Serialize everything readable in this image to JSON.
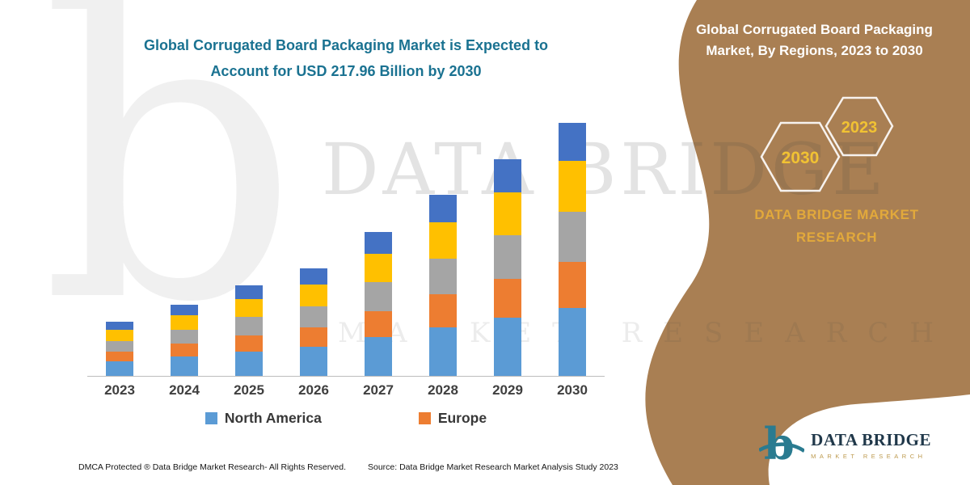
{
  "colors": {
    "teal": "#1A7291",
    "brown": "#A97F53",
    "gold": "#E2A93B",
    "dark": "#3F3F3F",
    "hex_year_gold": "#F1C233"
  },
  "headline": {
    "line1": "Global Corrugated Board Packaging Market is Expected to",
    "line2": "Account for USD 217.96 Billion by 2030"
  },
  "chart_data": {
    "type": "bar",
    "stacked": true,
    "title": "Global Corrugated Board Packaging Market is Expected to Account for USD 217.96 Billion by 2030",
    "xlabel": "",
    "ylabel": "",
    "y_axis_visible": false,
    "grid": false,
    "legend_position": "bottom",
    "ylim": [
      0,
      230
    ],
    "unit_hint": "USD Billion",
    "categories": [
      "2023",
      "2024",
      "2025",
      "2026",
      "2027",
      "2028",
      "2029",
      "2030"
    ],
    "series": [
      {
        "name": "North America",
        "color": "#5B9BD5",
        "values": [
          12.6,
          16.6,
          21.1,
          25.0,
          33.5,
          42.1,
          50.4,
          58.8
        ]
      },
      {
        "name": "Europe",
        "color": "#ED7D31",
        "values": [
          8.4,
          11.0,
          14.0,
          16.7,
          22.3,
          28.1,
          33.6,
          39.2
        ]
      },
      {
        "name": "",
        "color": "#A5A5A5",
        "values": [
          9.3,
          12.3,
          15.6,
          18.5,
          24.8,
          31.2,
          37.3,
          43.6
        ]
      },
      {
        "name": "",
        "color": "#FFC000",
        "values": [
          9.3,
          12.3,
          15.6,
          18.5,
          24.8,
          31.2,
          37.3,
          43.6
        ]
      },
      {
        "name": "",
        "color": "#4472C4",
        "values": [
          7.0,
          9.2,
          11.7,
          13.9,
          18.6,
          23.4,
          28.0,
          32.7
        ]
      }
    ],
    "legend": [
      "North America",
      "Europe"
    ]
  },
  "side_panel": {
    "title": "Global Corrugated Board Packaging Market, By Regions, 2023 to 2030",
    "hex_years": [
      "2030",
      "2023"
    ],
    "brand_line1": "DATA BRIDGE MARKET",
    "brand_line2": "RESEARCH"
  },
  "watermark": {
    "glyph": "b",
    "line1": "DATA BRIDGE",
    "line2": "MARKET RESEARCH"
  },
  "footer": {
    "dmca": "DMCA Protected ® Data Bridge Market Research-  All Rights Reserved.",
    "source": "Source: Data Bridge Market Research  Market Analysis Study 2023"
  },
  "logo": {
    "name": "DATA BRIDGE",
    "subtext": "MARKET RESEARCH"
  }
}
